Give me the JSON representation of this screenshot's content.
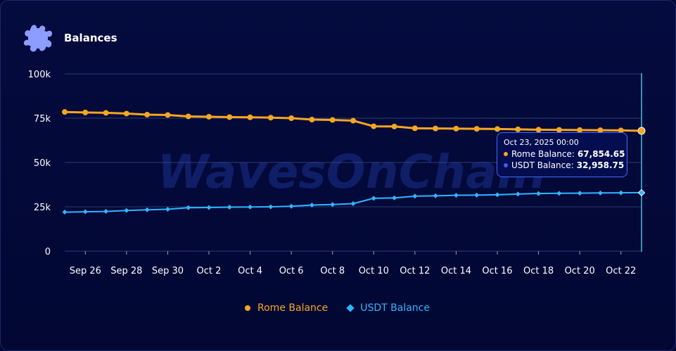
{
  "header": {
    "title": "Balances",
    "icon": "puzzle-icon"
  },
  "watermark": "WavesOnChain",
  "colors": {
    "rome": "#f5a623",
    "usdt": "#2eb6ff",
    "grid": "#3a4d8a",
    "background": "#020733"
  },
  "tooltip": {
    "date": "Oct 23, 2025 00:00",
    "rows": [
      {
        "label": "Rome Balance:",
        "value": "67,854.65",
        "color": "#f5a623"
      },
      {
        "label": "USDT Balance:",
        "value": "32,958.75",
        "color": "#3a5cff"
      }
    ]
  },
  "chart_data": {
    "type": "line",
    "title": "Balances",
    "x": [
      "Sep 25",
      "Sep 26",
      "Sep 27",
      "Sep 28",
      "Sep 29",
      "Sep 30",
      "Oct 1",
      "Oct 2",
      "Oct 3",
      "Oct 4",
      "Oct 5",
      "Oct 6",
      "Oct 7",
      "Oct 8",
      "Oct 9",
      "Oct 10",
      "Oct 11",
      "Oct 12",
      "Oct 13",
      "Oct 14",
      "Oct 15",
      "Oct 16",
      "Oct 17",
      "Oct 18",
      "Oct 19",
      "Oct 20",
      "Oct 21",
      "Oct 22",
      "Oct 23"
    ],
    "x_tick_labels": [
      "Sep 26",
      "Sep 28",
      "Sep 30",
      "Oct 2",
      "Oct 4",
      "Oct 6",
      "Oct 8",
      "Oct 10",
      "Oct 12",
      "Oct 14",
      "Oct 16",
      "Oct 18",
      "Oct 20",
      "Oct 22"
    ],
    "y_tick_labels": [
      "0",
      "25k",
      "50k",
      "75k",
      "100k"
    ],
    "ylim": [
      0,
      100000
    ],
    "grid": true,
    "legend_position": "bottom",
    "series": [
      {
        "name": "Rome Balance",
        "marker": "circle",
        "color": "#f5a623",
        "values": [
          78500,
          78200,
          78000,
          77600,
          77000,
          76800,
          76000,
          75800,
          75600,
          75500,
          75300,
          75000,
          74200,
          74000,
          73600,
          70400,
          70300,
          69300,
          69200,
          69100,
          69000,
          68900,
          68700,
          68500,
          68400,
          68300,
          68200,
          68100,
          67854.65
        ]
      },
      {
        "name": "USDT Balance",
        "marker": "diamond",
        "color": "#2eb6ff",
        "values": [
          22000,
          22200,
          22400,
          22900,
          23300,
          23600,
          24500,
          24600,
          24800,
          24900,
          25000,
          25300,
          26000,
          26300,
          26800,
          29800,
          30000,
          31000,
          31200,
          31500,
          31600,
          31800,
          32200,
          32500,
          32600,
          32700,
          32800,
          32900,
          32958.75
        ]
      }
    ]
  }
}
